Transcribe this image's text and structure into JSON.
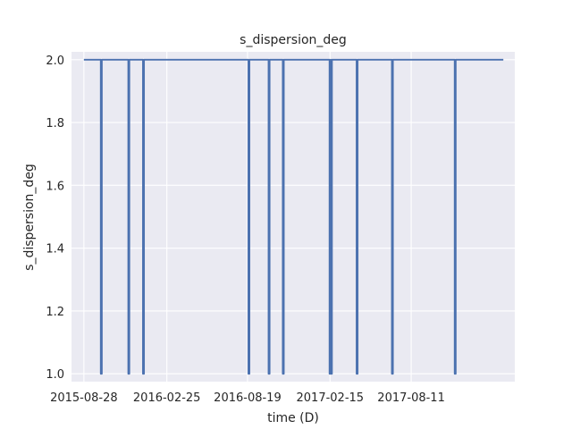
{
  "chart_data": {
    "type": "line",
    "title": "s_dispersion_deg",
    "xlabel": "time (D)",
    "ylabel": "s_dispersion_deg",
    "xlim": [
      "2015-08-01",
      "2018-03-25"
    ],
    "ylim": [
      0.975,
      2.025
    ],
    "xticks": [
      "2015-08-28",
      "2016-02-25",
      "2016-08-19",
      "2017-02-15",
      "2017-08-11"
    ],
    "yticks": [
      1.0,
      1.2,
      1.4,
      1.6,
      1.8,
      2.0
    ],
    "ytick_labels": [
      "1.0",
      "1.2",
      "1.4",
      "1.6",
      "1.8",
      "2.0"
    ],
    "grid": true,
    "background_color": "#eaeaf2",
    "line_color": "#4c72b0",
    "series": [
      {
        "x_start": "2015-08-28",
        "x_end": "2018-02-28",
        "baseline": 2.0,
        "dip_value": 1.0,
        "dips_at": [
          "2015-10-05",
          "2015-12-04",
          "2016-01-05",
          "2016-08-22",
          "2016-10-05",
          "2016-11-05",
          "2017-02-15",
          "2017-02-18",
          "2017-04-15",
          "2017-07-01",
          "2017-11-15"
        ]
      }
    ]
  }
}
